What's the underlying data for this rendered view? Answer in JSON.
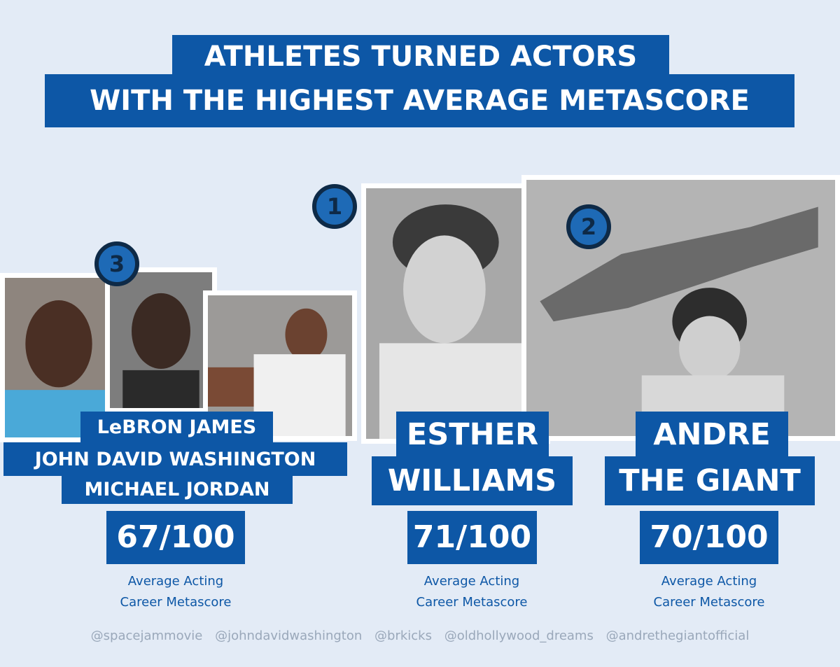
{
  "title": {
    "line1": "ATHLETES TURNED ACTORS",
    "line2": "WITH THE HIGHEST AVERAGE METASCORE"
  },
  "entries": [
    {
      "rank": "1",
      "name_lines": [
        "ESTHER",
        "WILLIAMS"
      ],
      "score": "71/100",
      "caption_lines": [
        "Average Acting",
        "Career Metascore"
      ]
    },
    {
      "rank": "2",
      "name_lines": [
        "ANDRE",
        "THE GIANT"
      ],
      "score": "70/100",
      "caption_lines": [
        "Average Acting",
        "Career Metascore"
      ]
    },
    {
      "rank": "3",
      "name_lines": [
        "LeBRON JAMES",
        "JOHN DAVID WASHINGTON",
        "MICHAEL JORDAN"
      ],
      "score": "67/100",
      "caption_lines": [
        "Average Acting",
        "Career Metascore"
      ]
    }
  ],
  "credits": [
    "@spacejammovie",
    "@johndavidwashington",
    "@brkicks",
    "@oldhollywood_dreams",
    "@andrethegiantofficial"
  ],
  "colors": {
    "background": "#e3ebf6",
    "band": "#0d57a6",
    "badge_fill": "#1e6ab6",
    "badge_ring": "#0e2a47",
    "credit_text": "#9aa8ba"
  }
}
